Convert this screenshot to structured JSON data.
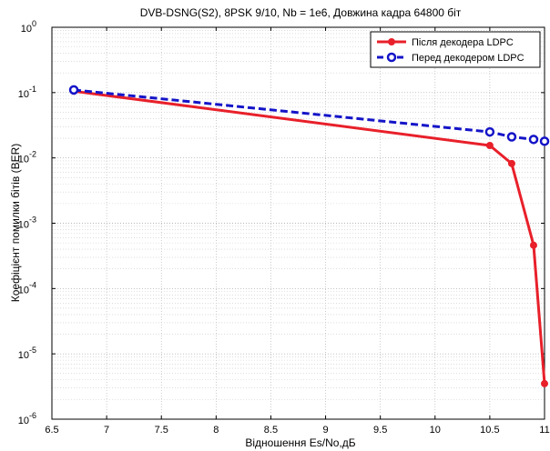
{
  "chart_data": {
    "type": "line",
    "title": "DVB-DSNG(S2), 8PSK 9/10, Nb = 1e6, Довжина кадра 64800 біт",
    "xlabel": "Відношення Es/No,дБ",
    "ylabel": "Коефіцієнт помилки бітів (BER)",
    "xlim": [
      6.5,
      11
    ],
    "ylim": [
      1e-06,
      1
    ],
    "yscale": "log",
    "grid": true,
    "legend_position": "top-right",
    "x_ticks": [
      "6.5",
      "7",
      "7.5",
      "8",
      "8.5",
      "9",
      "9.5",
      "10",
      "10.5",
      "11"
    ],
    "y_ticks": [
      {
        "base": "10",
        "exp": "0"
      },
      {
        "base": "10",
        "exp": "-1"
      },
      {
        "base": "10",
        "exp": "-2"
      },
      {
        "base": "10",
        "exp": "-3"
      },
      {
        "base": "10",
        "exp": "-4"
      },
      {
        "base": "10",
        "exp": "-5"
      },
      {
        "base": "10",
        "exp": "-6"
      }
    ],
    "series": [
      {
        "name": "Після декодера LDPC",
        "color": "#e8202a",
        "style": "solid",
        "marker": "filled-circle",
        "x": [
          6.7,
          10.5,
          10.7,
          10.9,
          11.0
        ],
        "y": [
          0.105,
          0.0155,
          0.0082,
          0.00046,
          3.5e-06
        ]
      },
      {
        "name": "Перед декодером LDPC",
        "color": "#1414c8",
        "style": "dashed",
        "marker": "open-circle",
        "x": [
          6.7,
          10.5,
          10.7,
          10.9,
          11.0
        ],
        "y": [
          0.11,
          0.025,
          0.021,
          0.0192,
          0.018
        ]
      }
    ]
  }
}
